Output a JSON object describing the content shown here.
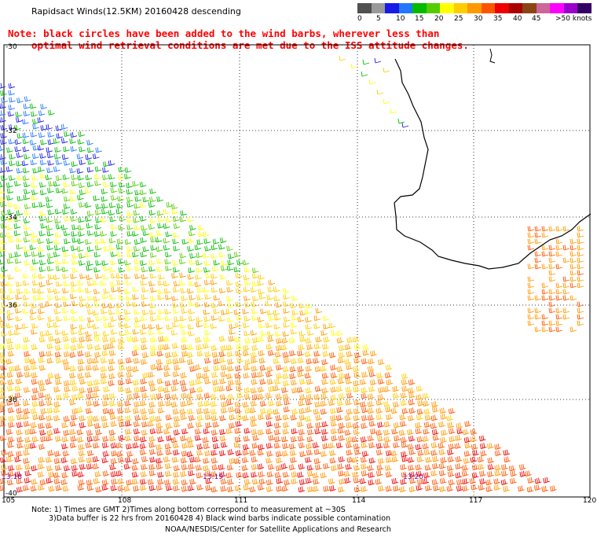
{
  "title": "Rapidsact Winds(12.5KM) 20160428 descending",
  "note": {
    "line1": "Note: black circles have been added to the wind barbs, wherever less than",
    "line2": "optimal wind retrieval conditions are met due to the ISS attitude changes."
  },
  "legend": {
    "colors": [
      "#505050",
      "#9a9a9a",
      "#1a1ae6",
      "#2277ff",
      "#00bb00",
      "#55cc00",
      "#ffff00",
      "#ffcc00",
      "#ff9900",
      "#ff5500",
      "#ee0000",
      "#aa0000",
      "#8b4513",
      "#cc6699",
      "#ff00ff",
      "#9900cc",
      "#330066"
    ],
    "ticks": [
      "0",
      "5",
      "10",
      "15",
      "20",
      "25",
      "30",
      "35",
      "40",
      "45",
      ">50 knots"
    ]
  },
  "map": {
    "lat_labels": [
      "-30",
      "-32",
      "-34",
      "-36",
      "-38",
      "-40"
    ],
    "lon_labels": [
      "105",
      "108",
      "111",
      "114",
      "117",
      "120"
    ],
    "time_labels": [
      "13:18",
      "13:19",
      "13:20"
    ]
  },
  "footer": {
    "line1": "Note: 1) Times are GMT  2)Times along bottom correspond to measurement at ~30S",
    "line2": "3)Data buffer is 22 hrs from 20160428  4) Black wind barbs indicate possible contamination",
    "line3": "NOAA/NESDIS/Center for Satellite Applications and Research"
  }
}
